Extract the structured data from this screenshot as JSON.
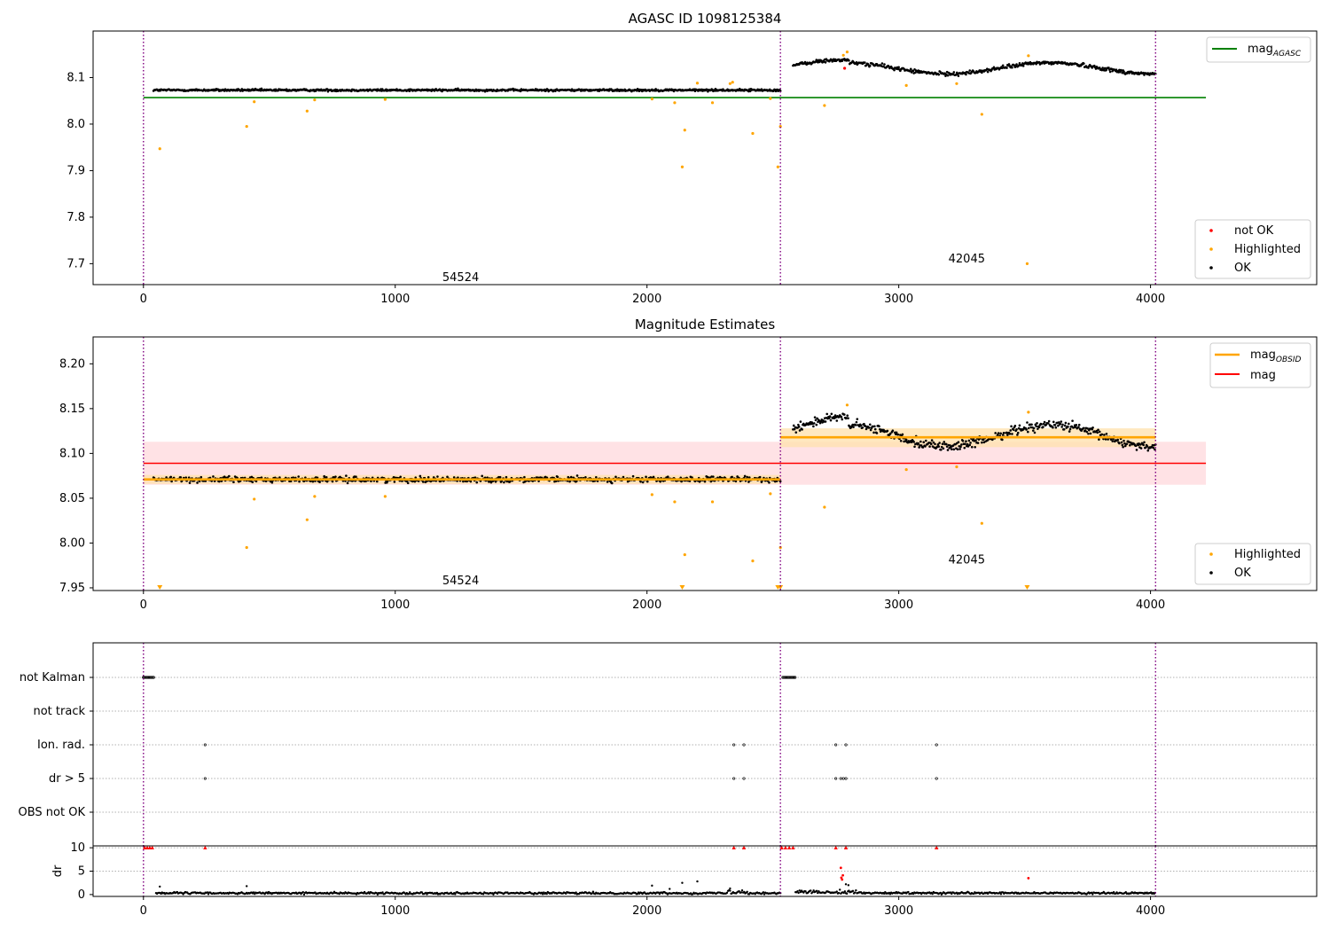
{
  "chart_data": [
    {
      "type": "scatter",
      "title": "AGASC ID 1098125384",
      "xlim": [
        -200,
        4660
      ],
      "ylim": [
        7.655,
        8.2
      ],
      "xticks": [
        0,
        1000,
        2000,
        3000,
        4000
      ],
      "yticks": [
        7.7,
        7.8,
        7.9,
        8.0,
        8.1
      ],
      "obsid_boundaries": [
        0,
        2530,
        4020
      ],
      "segments": [
        {
          "label": "54524",
          "x_label": 1260,
          "y_label": 7.67,
          "x_start": 40,
          "x_end": 2530,
          "level": 8.073
        },
        {
          "label": "42045",
          "x_label": 3270,
          "y_label": 7.71,
          "x_start": 2580,
          "x_end": 4020,
          "level": 8.12
        }
      ],
      "reference_lines": [
        {
          "name": "mag",
          "sub": "AGASC",
          "value": 8.057,
          "x": [
            0,
            4220
          ],
          "color": "#008000"
        }
      ],
      "highlighted_points": [
        [
          65,
          7.947
        ],
        [
          410,
          7.995
        ],
        [
          440,
          8.048
        ],
        [
          650,
          8.028
        ],
        [
          680,
          8.052
        ],
        [
          960,
          8.053
        ],
        [
          2020,
          8.054
        ],
        [
          2110,
          8.046
        ],
        [
          2140,
          7.908
        ],
        [
          2150,
          7.987
        ],
        [
          2200,
          8.088
        ],
        [
          2260,
          8.046
        ],
        [
          2330,
          8.087
        ],
        [
          2340,
          8.09
        ],
        [
          2420,
          7.98
        ],
        [
          2490,
          8.055
        ],
        [
          2520,
          7.908
        ],
        [
          2530,
          7.995
        ],
        [
          2705,
          8.04
        ],
        [
          2780,
          8.148
        ],
        [
          2795,
          8.155
        ],
        [
          3030,
          8.083
        ],
        [
          3230,
          8.087
        ],
        [
          3330,
          8.021
        ],
        [
          3510,
          7.7
        ],
        [
          3515,
          8.147
        ]
      ],
      "not_ok_points": [
        [
          2785,
          8.12
        ]
      ],
      "ok_series_note": "dense OK samples along each segment level",
      "legend": {
        "location": "lower-right",
        "entries": [
          "not OK",
          "Highlighted",
          "OK"
        ]
      },
      "legend_top": {
        "location": "upper-right",
        "entries": [
          "mag_AGASC"
        ]
      },
      "colors": {
        "ok": "#000000",
        "highlighted": "#ffa500",
        "not_ok": "#ff0000",
        "agasc": "#008000",
        "boundary": "#800080"
      }
    },
    {
      "type": "scatter",
      "title": "Magnitude Estimates",
      "xlim": [
        -200,
        4660
      ],
      "ylim": [
        7.947,
        8.23
      ],
      "xticks": [
        0,
        1000,
        2000,
        3000,
        4000
      ],
      "yticks": [
        7.95,
        8.0,
        8.05,
        8.1,
        8.15,
        8.2
      ],
      "obsid_boundaries": [
        0,
        2530,
        4020
      ],
      "segments": [
        {
          "label": "54524",
          "x_label": 1260,
          "y_label": 7.958,
          "x_start": 0,
          "x_end": 2530,
          "level": 8.071,
          "band": [
            8.066,
            8.076
          ]
        },
        {
          "label": "42045",
          "x_label": 3270,
          "y_label": 7.981,
          "x_start": 2530,
          "x_end": 4020,
          "level": 8.118,
          "band": [
            8.107,
            8.128
          ]
        }
      ],
      "mag_line": {
        "name": "mag",
        "value": 8.089,
        "band": [
          8.065,
          8.113
        ],
        "x": [
          0,
          4220
        ],
        "color": "#ff0000"
      },
      "highlighted_points": [
        [
          410,
          7.995
        ],
        [
          440,
          8.049
        ],
        [
          650,
          8.026
        ],
        [
          680,
          8.052
        ],
        [
          960,
          8.052
        ],
        [
          2020,
          8.054
        ],
        [
          2110,
          8.046
        ],
        [
          2150,
          7.987
        ],
        [
          2260,
          8.046
        ],
        [
          2420,
          7.98
        ],
        [
          2490,
          8.055
        ],
        [
          2530,
          7.995
        ],
        [
          2705,
          8.04
        ],
        [
          2795,
          8.154
        ],
        [
          3030,
          8.082
        ],
        [
          3230,
          8.085
        ],
        [
          3330,
          8.022
        ],
        [
          3515,
          8.146
        ]
      ],
      "out_of_range_markers": [
        65,
        2140,
        2520,
        2530,
        3510
      ],
      "legend": {
        "location": "lower-right",
        "entries": [
          "Highlighted",
          "OK"
        ]
      },
      "legend_top": {
        "location": "upper-right",
        "entries": [
          "mag_OBSID",
          "mag"
        ]
      },
      "colors": {
        "ok": "#000000",
        "highlighted": "#ffa500",
        "obsid": "#ffa500",
        "mag": "#ff0000",
        "boundary": "#800080"
      }
    },
    {
      "type": "scatter",
      "title": "",
      "xlim": [
        -200,
        4660
      ],
      "flag_rows": [
        "not Kalman",
        "not track",
        "Ion. rad.",
        "dr > 5",
        "OBS not OK"
      ],
      "flag_points": {
        "not Kalman": [
          [
            0,
            40
          ],
          [
            2540,
            2590
          ]
        ],
        "not track": [],
        "Ion. rad.": [
          245,
          2345,
          2385,
          2750,
          2790,
          3150
        ],
        "dr > 5": [
          245,
          2345,
          2385,
          2750,
          2770,
          2780,
          2790,
          3150
        ],
        "OBS not OK": []
      },
      "obsid_boundaries": [
        0,
        2530,
        4020
      ],
      "colors": {
        "points": "#000000",
        "boundary": "#800080"
      }
    },
    {
      "type": "scatter",
      "title": "",
      "ylabel": "dr",
      "xlim": [
        -200,
        4660
      ],
      "ylim": [
        -0.4,
        10.4
      ],
      "xticks": [
        0,
        1000,
        2000,
        3000,
        4000
      ],
      "yticks": [
        0,
        5,
        10
      ],
      "clipped_red_x": [
        5,
        15,
        25,
        35,
        245,
        2345,
        2385,
        2535,
        2550,
        2565,
        2580,
        2750,
        2790,
        3150
      ],
      "red_points": [
        [
          2770,
          5.7
        ],
        [
          2772,
          3.6
        ],
        [
          2775,
          3.2
        ],
        [
          2778,
          4.1
        ],
        [
          3515,
          3.5
        ]
      ],
      "outliers": [
        [
          65,
          1.7
        ],
        [
          410,
          1.8
        ],
        [
          2020,
          1.9
        ],
        [
          2090,
          1.2
        ],
        [
          2140,
          2.5
        ],
        [
          2200,
          2.8
        ],
        [
          2330,
          1.3
        ],
        [
          2790,
          2.2
        ],
        [
          2800,
          2.0
        ]
      ],
      "noise_level": 0.3,
      "obsid_boundaries": [
        0,
        2530,
        4020
      ],
      "colors": {
        "ok": "#000000",
        "clipped": "#ff0000",
        "boundary": "#800080"
      }
    }
  ]
}
